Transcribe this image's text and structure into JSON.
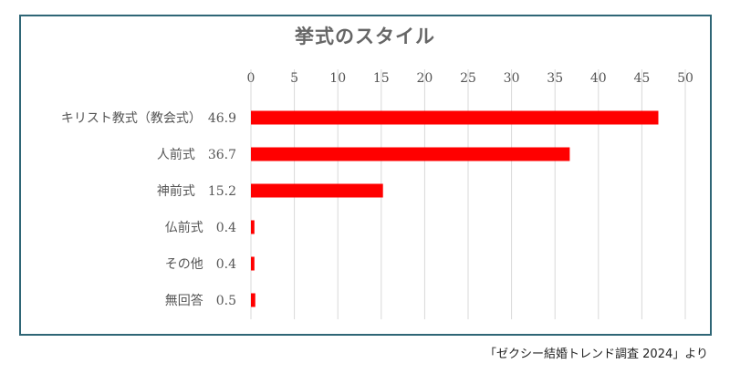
{
  "chart_data": {
    "type": "bar",
    "orientation": "horizontal",
    "title": "挙式のスタイル",
    "categories": [
      "キリスト教式（教会式）",
      "人前式",
      "神前式",
      "仏前式",
      "その他",
      "無回答"
    ],
    "category_labels": [
      "キリスト教式（教会式）　46.9",
      "人前式　36.7",
      "神前式　15.2",
      "仏前式　0.4",
      "その他　0.4",
      "無回答　0.5"
    ],
    "values": [
      46.9,
      36.7,
      15.2,
      0.4,
      0.4,
      0.5
    ],
    "xlim": [
      0,
      50
    ],
    "x_ticks": [
      "0",
      "5",
      "10",
      "15",
      "20",
      "25",
      "30",
      "35",
      "40",
      "45",
      "50"
    ],
    "x_axis_position": "top",
    "grid": true,
    "legend": "none",
    "bar_color": "#ff0000",
    "grid_color": "#d9d9d9",
    "frame_color": "#2f6676"
  },
  "source_note": "「ゼクシー結婚トレンド調査 2024」より"
}
